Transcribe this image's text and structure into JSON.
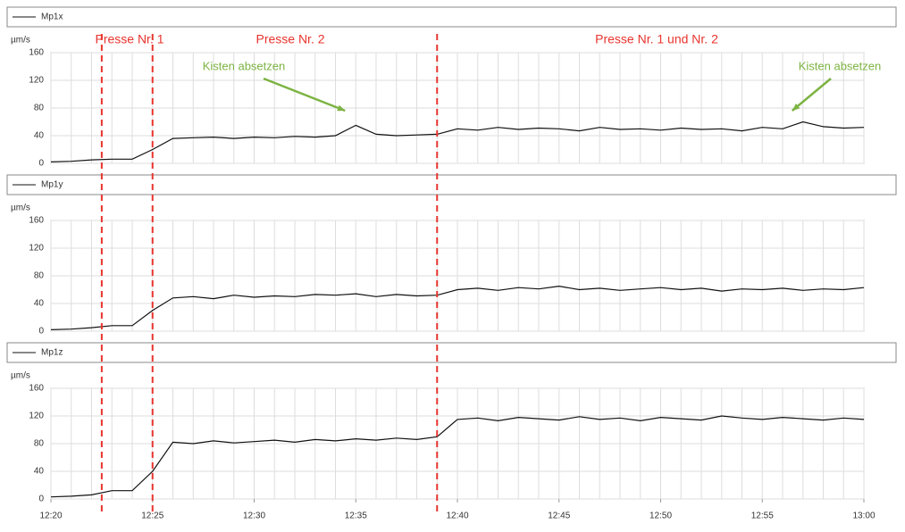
{
  "chart_data": [
    {
      "type": "line",
      "ylabel": "µm/s",
      "ylim": [
        0,
        160
      ],
      "yticks": [
        0,
        40,
        80,
        120,
        160
      ],
      "xlim": [
        "12:20",
        "13:00"
      ],
      "grid": true,
      "x": [
        "12:20",
        "12:21",
        "12:22",
        "12:23",
        "12:24",
        "12:25",
        "12:26",
        "12:27",
        "12:28",
        "12:29",
        "12:30",
        "12:31",
        "12:32",
        "12:33",
        "12:34",
        "12:35",
        "12:36",
        "12:37",
        "12:38",
        "12:39",
        "12:40",
        "12:41",
        "12:42",
        "12:43",
        "12:44",
        "12:45",
        "12:46",
        "12:47",
        "12:48",
        "12:49",
        "12:50",
        "12:51",
        "12:52",
        "12:53",
        "12:54",
        "12:55",
        "12:56",
        "12:57",
        "12:58",
        "12:59",
        "13:00"
      ],
      "series": [
        {
          "name": "Mp1x",
          "color": "#111111",
          "values": [
            2,
            3,
            5,
            6,
            6,
            20,
            36,
            37,
            38,
            36,
            38,
            37,
            39,
            38,
            40,
            55,
            42,
            40,
            41,
            42,
            50,
            48,
            52,
            49,
            51,
            50,
            47,
            52,
            49,
            50,
            48,
            51,
            49,
            50,
            47,
            52,
            50,
            60,
            53,
            51,
            52
          ]
        }
      ]
    },
    {
      "type": "line",
      "ylabel": "µm/s",
      "ylim": [
        0,
        160
      ],
      "yticks": [
        0,
        40,
        80,
        120,
        160
      ],
      "xlim": [
        "12:20",
        "13:00"
      ],
      "grid": true,
      "x": [
        "12:20",
        "12:21",
        "12:22",
        "12:23",
        "12:24",
        "12:25",
        "12:26",
        "12:27",
        "12:28",
        "12:29",
        "12:30",
        "12:31",
        "12:32",
        "12:33",
        "12:34",
        "12:35",
        "12:36",
        "12:37",
        "12:38",
        "12:39",
        "12:40",
        "12:41",
        "12:42",
        "12:43",
        "12:44",
        "12:45",
        "12:46",
        "12:47",
        "12:48",
        "12:49",
        "12:50",
        "12:51",
        "12:52",
        "12:53",
        "12:54",
        "12:55",
        "12:56",
        "12:57",
        "12:58",
        "12:59",
        "13:00"
      ],
      "series": [
        {
          "name": "Mp1y",
          "color": "#111111",
          "values": [
            2,
            3,
            5,
            8,
            8,
            30,
            48,
            50,
            47,
            52,
            49,
            51,
            50,
            53,
            52,
            54,
            50,
            53,
            51,
            52,
            60,
            62,
            59,
            63,
            61,
            65,
            60,
            62,
            59,
            61,
            63,
            60,
            62,
            58,
            61,
            60,
            62,
            59,
            61,
            60,
            63
          ]
        }
      ]
    },
    {
      "type": "line",
      "ylabel": "µm/s",
      "ylim": [
        0,
        160
      ],
      "yticks": [
        0,
        40,
        80,
        120,
        160
      ],
      "xlim": [
        "12:20",
        "13:00"
      ],
      "grid": true,
      "x": [
        "12:20",
        "12:21",
        "12:22",
        "12:23",
        "12:24",
        "12:25",
        "12:26",
        "12:27",
        "12:28",
        "12:29",
        "12:30",
        "12:31",
        "12:32",
        "12:33",
        "12:34",
        "12:35",
        "12:36",
        "12:37",
        "12:38",
        "12:39",
        "12:40",
        "12:41",
        "12:42",
        "12:43",
        "12:44",
        "12:45",
        "12:46",
        "12:47",
        "12:48",
        "12:49",
        "12:50",
        "12:51",
        "12:52",
        "12:53",
        "12:54",
        "12:55",
        "12:56",
        "12:57",
        "12:58",
        "12:59",
        "13:00"
      ],
      "xticks": [
        "12:20",
        "12:25",
        "12:30",
        "12:35",
        "12:40",
        "12:45",
        "12:50",
        "12:55",
        "13:00"
      ],
      "series": [
        {
          "name": "Mp1z",
          "color": "#111111",
          "values": [
            3,
            4,
            6,
            12,
            12,
            40,
            82,
            80,
            84,
            81,
            83,
            85,
            82,
            86,
            84,
            87,
            85,
            88,
            86,
            90,
            115,
            117,
            113,
            118,
            116,
            114,
            119,
            115,
            117,
            113,
            118,
            116,
            114,
            120,
            117,
            115,
            118,
            116,
            114,
            117,
            115
          ]
        }
      ]
    }
  ],
  "annotations": {
    "vlines": [
      "12:22:30",
      "12:25",
      "12:39"
    ],
    "labels": [
      "Presse Nr. 1",
      "Presse Nr. 2",
      "Presse Nr. 1 und Nr. 2"
    ],
    "notes": [
      {
        "text": "Kisten absetzen",
        "x": "12:35"
      },
      {
        "text": "Kisten absetzen",
        "x": "12:57"
      }
    ]
  }
}
